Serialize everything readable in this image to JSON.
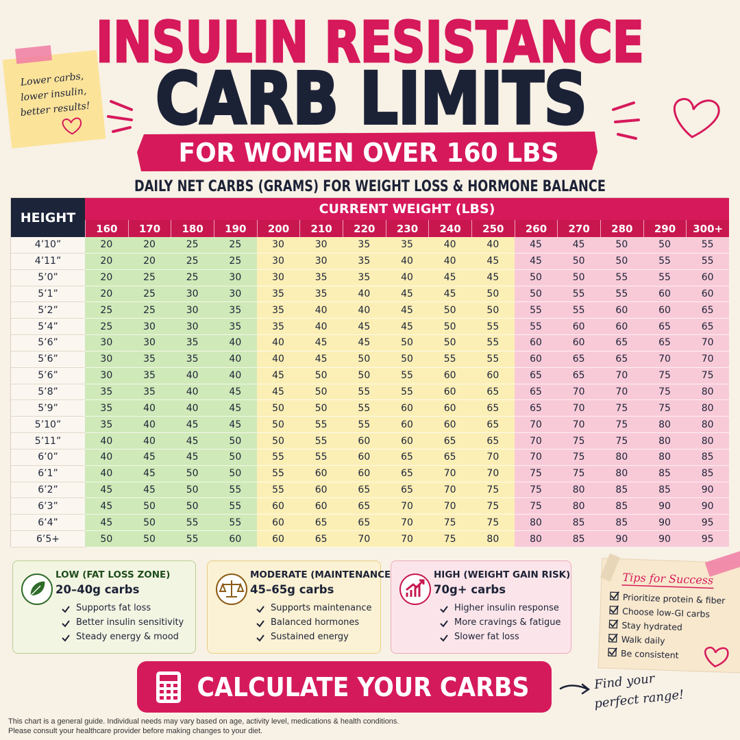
{
  "header": {
    "title_line1": "INSULIN RESISTANCE",
    "title_line2": "CARB LIMITS",
    "banner": "FOR WOMEN OVER 160 LBS",
    "subtitle": "DAILY NET CARBS (GRAMS) FOR WEIGHT LOSS & HORMONE BALANCE"
  },
  "sticky_note": {
    "lines": [
      "Lower carbs,",
      "lower insulin,",
      "better results!"
    ]
  },
  "table": {
    "corner_label": "HEIGHT",
    "weight_label": "CURRENT WEIGHT (LBS)",
    "columns": [
      "160",
      "170",
      "180",
      "190",
      "200",
      "210",
      "220",
      "230",
      "240",
      "250",
      "260",
      "270",
      "280",
      "290",
      "300+"
    ],
    "rows": [
      {
        "height": "4’10”",
        "values": [
          20,
          20,
          25,
          25,
          30,
          30,
          35,
          35,
          40,
          40,
          45,
          45,
          50,
          50,
          55
        ]
      },
      {
        "height": "4’11”",
        "values": [
          20,
          20,
          25,
          25,
          30,
          30,
          35,
          40,
          40,
          45,
          45,
          50,
          50,
          55,
          55
        ]
      },
      {
        "height": "5’0”",
        "values": [
          20,
          25,
          25,
          30,
          30,
          35,
          35,
          40,
          45,
          45,
          50,
          50,
          55,
          55,
          60
        ]
      },
      {
        "height": "5’1”",
        "values": [
          20,
          25,
          30,
          30,
          35,
          35,
          40,
          45,
          45,
          50,
          50,
          55,
          55,
          60,
          60
        ]
      },
      {
        "height": "5’2”",
        "values": [
          25,
          25,
          30,
          35,
          35,
          40,
          40,
          45,
          50,
          50,
          55,
          55,
          60,
          60,
          65
        ]
      },
      {
        "height": "5’4”",
        "values": [
          25,
          30,
          30,
          35,
          35,
          40,
          45,
          45,
          50,
          55,
          55,
          60,
          60,
          65,
          65
        ]
      },
      {
        "height": "5’6”",
        "values": [
          30,
          30,
          35,
          40,
          40,
          45,
          45,
          50,
          50,
          55,
          60,
          60,
          65,
          65,
          70
        ]
      },
      {
        "height": "5’6”",
        "values": [
          30,
          35,
          35,
          40,
          40,
          45,
          50,
          50,
          55,
          55,
          60,
          65,
          65,
          70,
          70
        ]
      },
      {
        "height": "5’6”",
        "values": [
          30,
          35,
          40,
          40,
          45,
          50,
          50,
          55,
          60,
          60,
          65,
          65,
          70,
          75,
          75
        ]
      },
      {
        "height": "5’8”",
        "values": [
          35,
          35,
          40,
          45,
          45,
          50,
          55,
          55,
          60,
          65,
          65,
          70,
          70,
          75,
          80
        ]
      },
      {
        "height": "5’9”",
        "values": [
          35,
          40,
          40,
          45,
          50,
          50,
          55,
          60,
          60,
          65,
          65,
          70,
          75,
          75,
          80
        ]
      },
      {
        "height": "5’10”",
        "values": [
          35,
          40,
          45,
          45,
          50,
          55,
          55,
          60,
          60,
          65,
          70,
          70,
          75,
          80,
          80
        ]
      },
      {
        "height": "5’11”",
        "values": [
          40,
          40,
          45,
          50,
          50,
          55,
          60,
          60,
          65,
          65,
          70,
          75,
          75,
          80,
          80
        ]
      },
      {
        "height": "6’0”",
        "values": [
          40,
          45,
          45,
          50,
          55,
          55,
          60,
          65,
          65,
          70,
          70,
          75,
          80,
          80,
          85
        ]
      },
      {
        "height": "6’1”",
        "values": [
          40,
          45,
          50,
          50,
          55,
          60,
          60,
          65,
          70,
          70,
          75,
          75,
          80,
          85,
          85
        ]
      },
      {
        "height": "6’2”",
        "values": [
          45,
          45,
          50,
          55,
          55,
          60,
          65,
          65,
          70,
          75,
          75,
          80,
          85,
          85,
          90
        ]
      },
      {
        "height": "6’3”",
        "values": [
          45,
          50,
          50,
          55,
          60,
          60,
          65,
          70,
          70,
          75,
          75,
          80,
          85,
          90,
          90
        ]
      },
      {
        "height": "6’4”",
        "values": [
          45,
          50,
          55,
          55,
          60,
          65,
          65,
          70,
          75,
          75,
          80,
          85,
          85,
          90,
          95
        ]
      },
      {
        "height": "6’5+",
        "values": [
          50,
          50,
          55,
          60,
          60,
          65,
          70,
          70,
          75,
          80,
          80,
          85,
          90,
          90,
          95
        ]
      }
    ]
  },
  "legend": [
    {
      "title": "LOW (FAT LOSS ZONE)",
      "range": "20–40g carbs",
      "items": [
        "Supports fat loss",
        "Better insulin sensitivity",
        "Steady energy & mood"
      ]
    },
    {
      "title": "MODERATE (MAINTENANCE)",
      "range": "45–65g carbs",
      "items": [
        "Supports maintenance",
        "Balanced hormones",
        "Sustained energy"
      ]
    },
    {
      "title": "HIGH (WEIGHT GAIN RISK)",
      "range": "70g+ carbs",
      "items": [
        "Higher insulin response",
        "More cravings & fatigue",
        "Slower fat loss"
      ]
    }
  ],
  "tips": {
    "title": "Tips for Success",
    "items": [
      "Prioritize protein & fiber",
      "Choose low-GI carbs",
      "Stay hydrated",
      "Walk daily",
      "Be consistent"
    ]
  },
  "cta": {
    "label": "CALCULATE YOUR CARBS"
  },
  "side_note": {
    "lines": [
      "Find your",
      "perfect range!"
    ]
  },
  "footer": {
    "lines": [
      "This chart is a general guide. Individual needs may vary based on age, activity level, medications & health conditions.",
      "Please consult your healthcare provider before making changes to your diet."
    ]
  }
}
